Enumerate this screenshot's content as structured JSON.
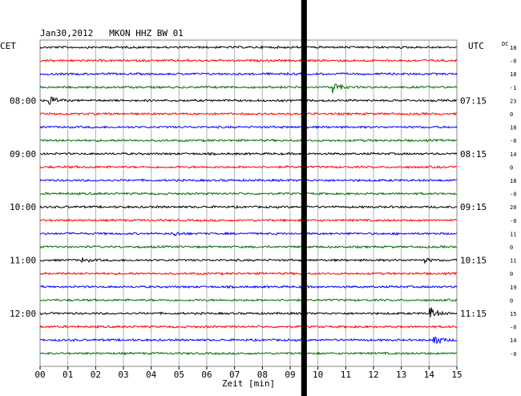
{
  "chart_data": {
    "type": "line",
    "title": "Jan30,2012   MKON HHZ BW 01",
    "xlabel": "Zeit [min]",
    "ylabel_left": "CET",
    "ylabel_right": "UTC",
    "dc_label": "DC",
    "x_ticks": [
      "00",
      "01",
      "02",
      "03",
      "04",
      "05",
      "06",
      "07",
      "08",
      "09",
      "10",
      "11",
      "12",
      "13",
      "14",
      "15"
    ],
    "xlim": [
      0,
      15
    ],
    "left_time_labels": [
      {
        "trace": 4,
        "text": "08:00"
      },
      {
        "trace": 8,
        "text": "09:00"
      },
      {
        "trace": 12,
        "text": "10:00"
      },
      {
        "trace": 16,
        "text": "11:00"
      },
      {
        "trace": 20,
        "text": "12:00"
      }
    ],
    "right_time_labels": [
      {
        "trace": 4,
        "text": "07:15"
      },
      {
        "trace": 8,
        "text": "08:15"
      },
      {
        "trace": 12,
        "text": "09:15"
      },
      {
        "trace": 16,
        "text": "10:15"
      },
      {
        "trace": 20,
        "text": "11:15"
      }
    ],
    "dc_values": [
      "18",
      "-0",
      "18",
      "-1",
      "23",
      "0",
      "18",
      "-0",
      "14",
      "0",
      "18",
      "-0",
      "20",
      "-0",
      "11",
      "0",
      "11",
      "0",
      "19",
      "0",
      "15",
      "-0",
      "14",
      "-0"
    ],
    "trace_colors": [
      "#000000",
      "#ff0000",
      "#0000ff",
      "#007000"
    ],
    "trace_count": 24,
    "gap_minute": 9.5,
    "events": [
      {
        "trace": 3,
        "minute": 10.5,
        "amplitude": 9
      },
      {
        "trace": 4,
        "minute": 0.3,
        "amplitude": 8
      },
      {
        "trace": 20,
        "minute": 14.0,
        "amplitude": 10
      },
      {
        "trace": 22,
        "minute": 14.1,
        "amplitude": 11
      },
      {
        "trace": 14,
        "minute": 4.8,
        "amplitude": 3
      },
      {
        "trace": 16,
        "minute": 1.5,
        "amplitude": 3
      },
      {
        "trace": 16,
        "minute": 13.8,
        "amplitude": 3
      }
    ],
    "grid": true
  }
}
